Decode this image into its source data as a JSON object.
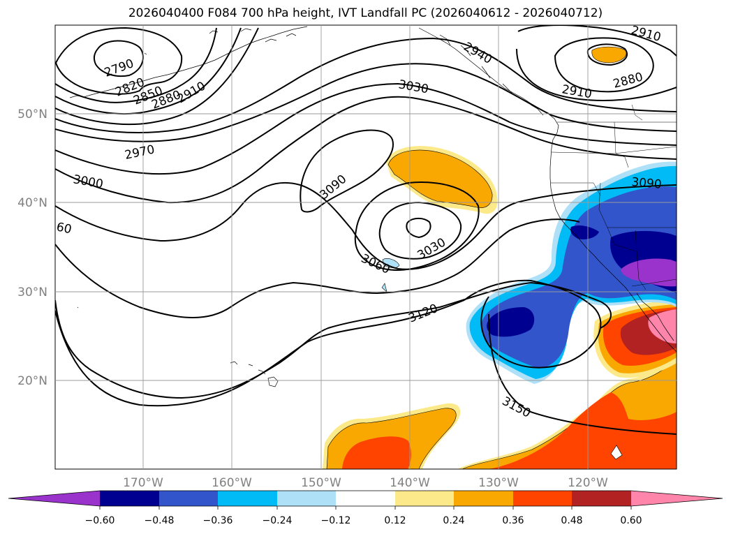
{
  "title": "2026040400 F084 700 hPa height, IVT Landfall PC (2026040612 - 2026040712)",
  "lat_labels": [
    "50°N",
    "40°N",
    "30°N",
    "20°N"
  ],
  "lon_labels": [
    "170°W",
    "160°W",
    "150°W",
    "140°W",
    "130°W",
    "120°W"
  ],
  "contour_labels": [
    "2790",
    "2820",
    "2850",
    "2880",
    "2910",
    "2940",
    "2910",
    "2910",
    "2880",
    "3030",
    "2970",
    "3000",
    "3090",
    "3090",
    "3030",
    "3060",
    "3120",
    "3150",
    "60"
  ],
  "colorbar": {
    "ticks": [
      "−0.60",
      "−0.48",
      "−0.36",
      "−0.24",
      "−0.12",
      "0.12",
      "0.24",
      "0.36",
      "0.48",
      "0.60"
    ],
    "colors": [
      "#9933cc",
      "#000090",
      "#3355cc",
      "#00bbf5",
      "#aee0f8",
      "#ffffff",
      "#fce98a",
      "#f8a800",
      "#ff4400",
      "#b22222",
      "#ff85aa"
    ]
  },
  "colors": {
    "orange": "#f8a800",
    "pale_yellow": "#fce98a",
    "red_orange": "#ff4400",
    "dark_red": "#b22222",
    "pink": "#ff85aa",
    "navy": "#000090",
    "royal_blue": "#3355cc",
    "sky_blue": "#00bbf5",
    "light_blue": "#aee0f8",
    "purple": "#9933cc"
  }
}
